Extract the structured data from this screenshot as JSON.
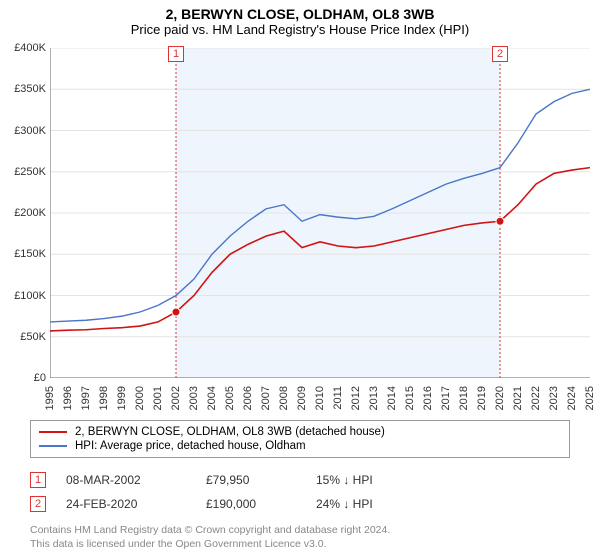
{
  "title": "2, BERWYN CLOSE, OLDHAM, OL8 3WB",
  "subtitle": "Price paid vs. HM Land Registry's House Price Index (HPI)",
  "chart": {
    "type": "line",
    "background_color": "#ffffff",
    "grid_color": "#e4e4e4",
    "axis_color": "#666666",
    "highlight_band": {
      "from_year": 2002,
      "to_year": 2020,
      "fill": "#eef5fc"
    },
    "vlines": [
      {
        "year": 2002,
        "color": "#d33",
        "dash": "2,2"
      },
      {
        "year": 2020,
        "color": "#d33",
        "dash": "2,2"
      }
    ],
    "markers_top": [
      {
        "id": "1",
        "year": 2002,
        "color": "#d33"
      },
      {
        "id": "2",
        "year": 2020,
        "color": "#d33"
      }
    ],
    "sale_points": [
      {
        "year": 2002,
        "value": 79950,
        "color": "#d11313"
      },
      {
        "year": 2020,
        "value": 190000,
        "color": "#d11313"
      }
    ],
    "x": {
      "min": 1995,
      "max": 2025,
      "ticks": [
        1995,
        1996,
        1997,
        1998,
        1999,
        2000,
        2001,
        2002,
        2003,
        2004,
        2005,
        2006,
        2007,
        2008,
        2009,
        2010,
        2011,
        2012,
        2013,
        2014,
        2015,
        2016,
        2017,
        2018,
        2019,
        2020,
        2021,
        2022,
        2023,
        2024,
        2025
      ],
      "label_fontsize": 11
    },
    "y": {
      "min": 0,
      "max": 400000,
      "tick_step": 50000,
      "tick_labels": [
        "£0",
        "£50K",
        "£100K",
        "£150K",
        "£200K",
        "£250K",
        "£300K",
        "£350K",
        "£400K"
      ],
      "label_fontsize": 11
    },
    "series": [
      {
        "name": "price_paid",
        "label": "2, BERWYN CLOSE, OLDHAM, OL8 3WB (detached house)",
        "color": "#d11313",
        "width": 1.6,
        "data": [
          [
            1995,
            57000
          ],
          [
            1996,
            58000
          ],
          [
            1997,
            58500
          ],
          [
            1998,
            60000
          ],
          [
            1999,
            61000
          ],
          [
            2000,
            63000
          ],
          [
            2001,
            68000
          ],
          [
            2002,
            79950
          ],
          [
            2003,
            100000
          ],
          [
            2004,
            128000
          ],
          [
            2005,
            150000
          ],
          [
            2006,
            162000
          ],
          [
            2007,
            172000
          ],
          [
            2008,
            178000
          ],
          [
            2009,
            158000
          ],
          [
            2010,
            165000
          ],
          [
            2011,
            160000
          ],
          [
            2012,
            158000
          ],
          [
            2013,
            160000
          ],
          [
            2014,
            165000
          ],
          [
            2015,
            170000
          ],
          [
            2016,
            175000
          ],
          [
            2017,
            180000
          ],
          [
            2018,
            185000
          ],
          [
            2019,
            188000
          ],
          [
            2020,
            190000
          ],
          [
            2021,
            210000
          ],
          [
            2022,
            235000
          ],
          [
            2023,
            248000
          ],
          [
            2024,
            252000
          ],
          [
            2025,
            255000
          ]
        ]
      },
      {
        "name": "hpi",
        "label": "HPI: Average price, detached house, Oldham",
        "color": "#4a76c7",
        "width": 1.4,
        "data": [
          [
            1995,
            68000
          ],
          [
            1996,
            69000
          ],
          [
            1997,
            70000
          ],
          [
            1998,
            72000
          ],
          [
            1999,
            75000
          ],
          [
            2000,
            80000
          ],
          [
            2001,
            88000
          ],
          [
            2002,
            100000
          ],
          [
            2003,
            120000
          ],
          [
            2004,
            150000
          ],
          [
            2005,
            172000
          ],
          [
            2006,
            190000
          ],
          [
            2007,
            205000
          ],
          [
            2008,
            210000
          ],
          [
            2009,
            190000
          ],
          [
            2010,
            198000
          ],
          [
            2011,
            195000
          ],
          [
            2012,
            193000
          ],
          [
            2013,
            196000
          ],
          [
            2014,
            205000
          ],
          [
            2015,
            215000
          ],
          [
            2016,
            225000
          ],
          [
            2017,
            235000
          ],
          [
            2018,
            242000
          ],
          [
            2019,
            248000
          ],
          [
            2020,
            255000
          ],
          [
            2021,
            285000
          ],
          [
            2022,
            320000
          ],
          [
            2023,
            335000
          ],
          [
            2024,
            345000
          ],
          [
            2025,
            350000
          ]
        ]
      }
    ]
  },
  "legend": {
    "items": [
      {
        "color": "#d11313",
        "label": "2, BERWYN CLOSE, OLDHAM, OL8 3WB (detached house)"
      },
      {
        "color": "#4a76c7",
        "label": "HPI: Average price, detached house, Oldham"
      }
    ]
  },
  "transactions": [
    {
      "id": "1",
      "marker_color": "#d33",
      "date": "08-MAR-2002",
      "price": "£79,950",
      "diff": "15% ↓ HPI"
    },
    {
      "id": "2",
      "marker_color": "#d33",
      "date": "24-FEB-2020",
      "price": "£190,000",
      "diff": "24% ↓ HPI"
    }
  ],
  "footnote": {
    "line1": "Contains HM Land Registry data © Crown copyright and database right 2024.",
    "line2": "This data is licensed under the Open Government Licence v3.0."
  }
}
